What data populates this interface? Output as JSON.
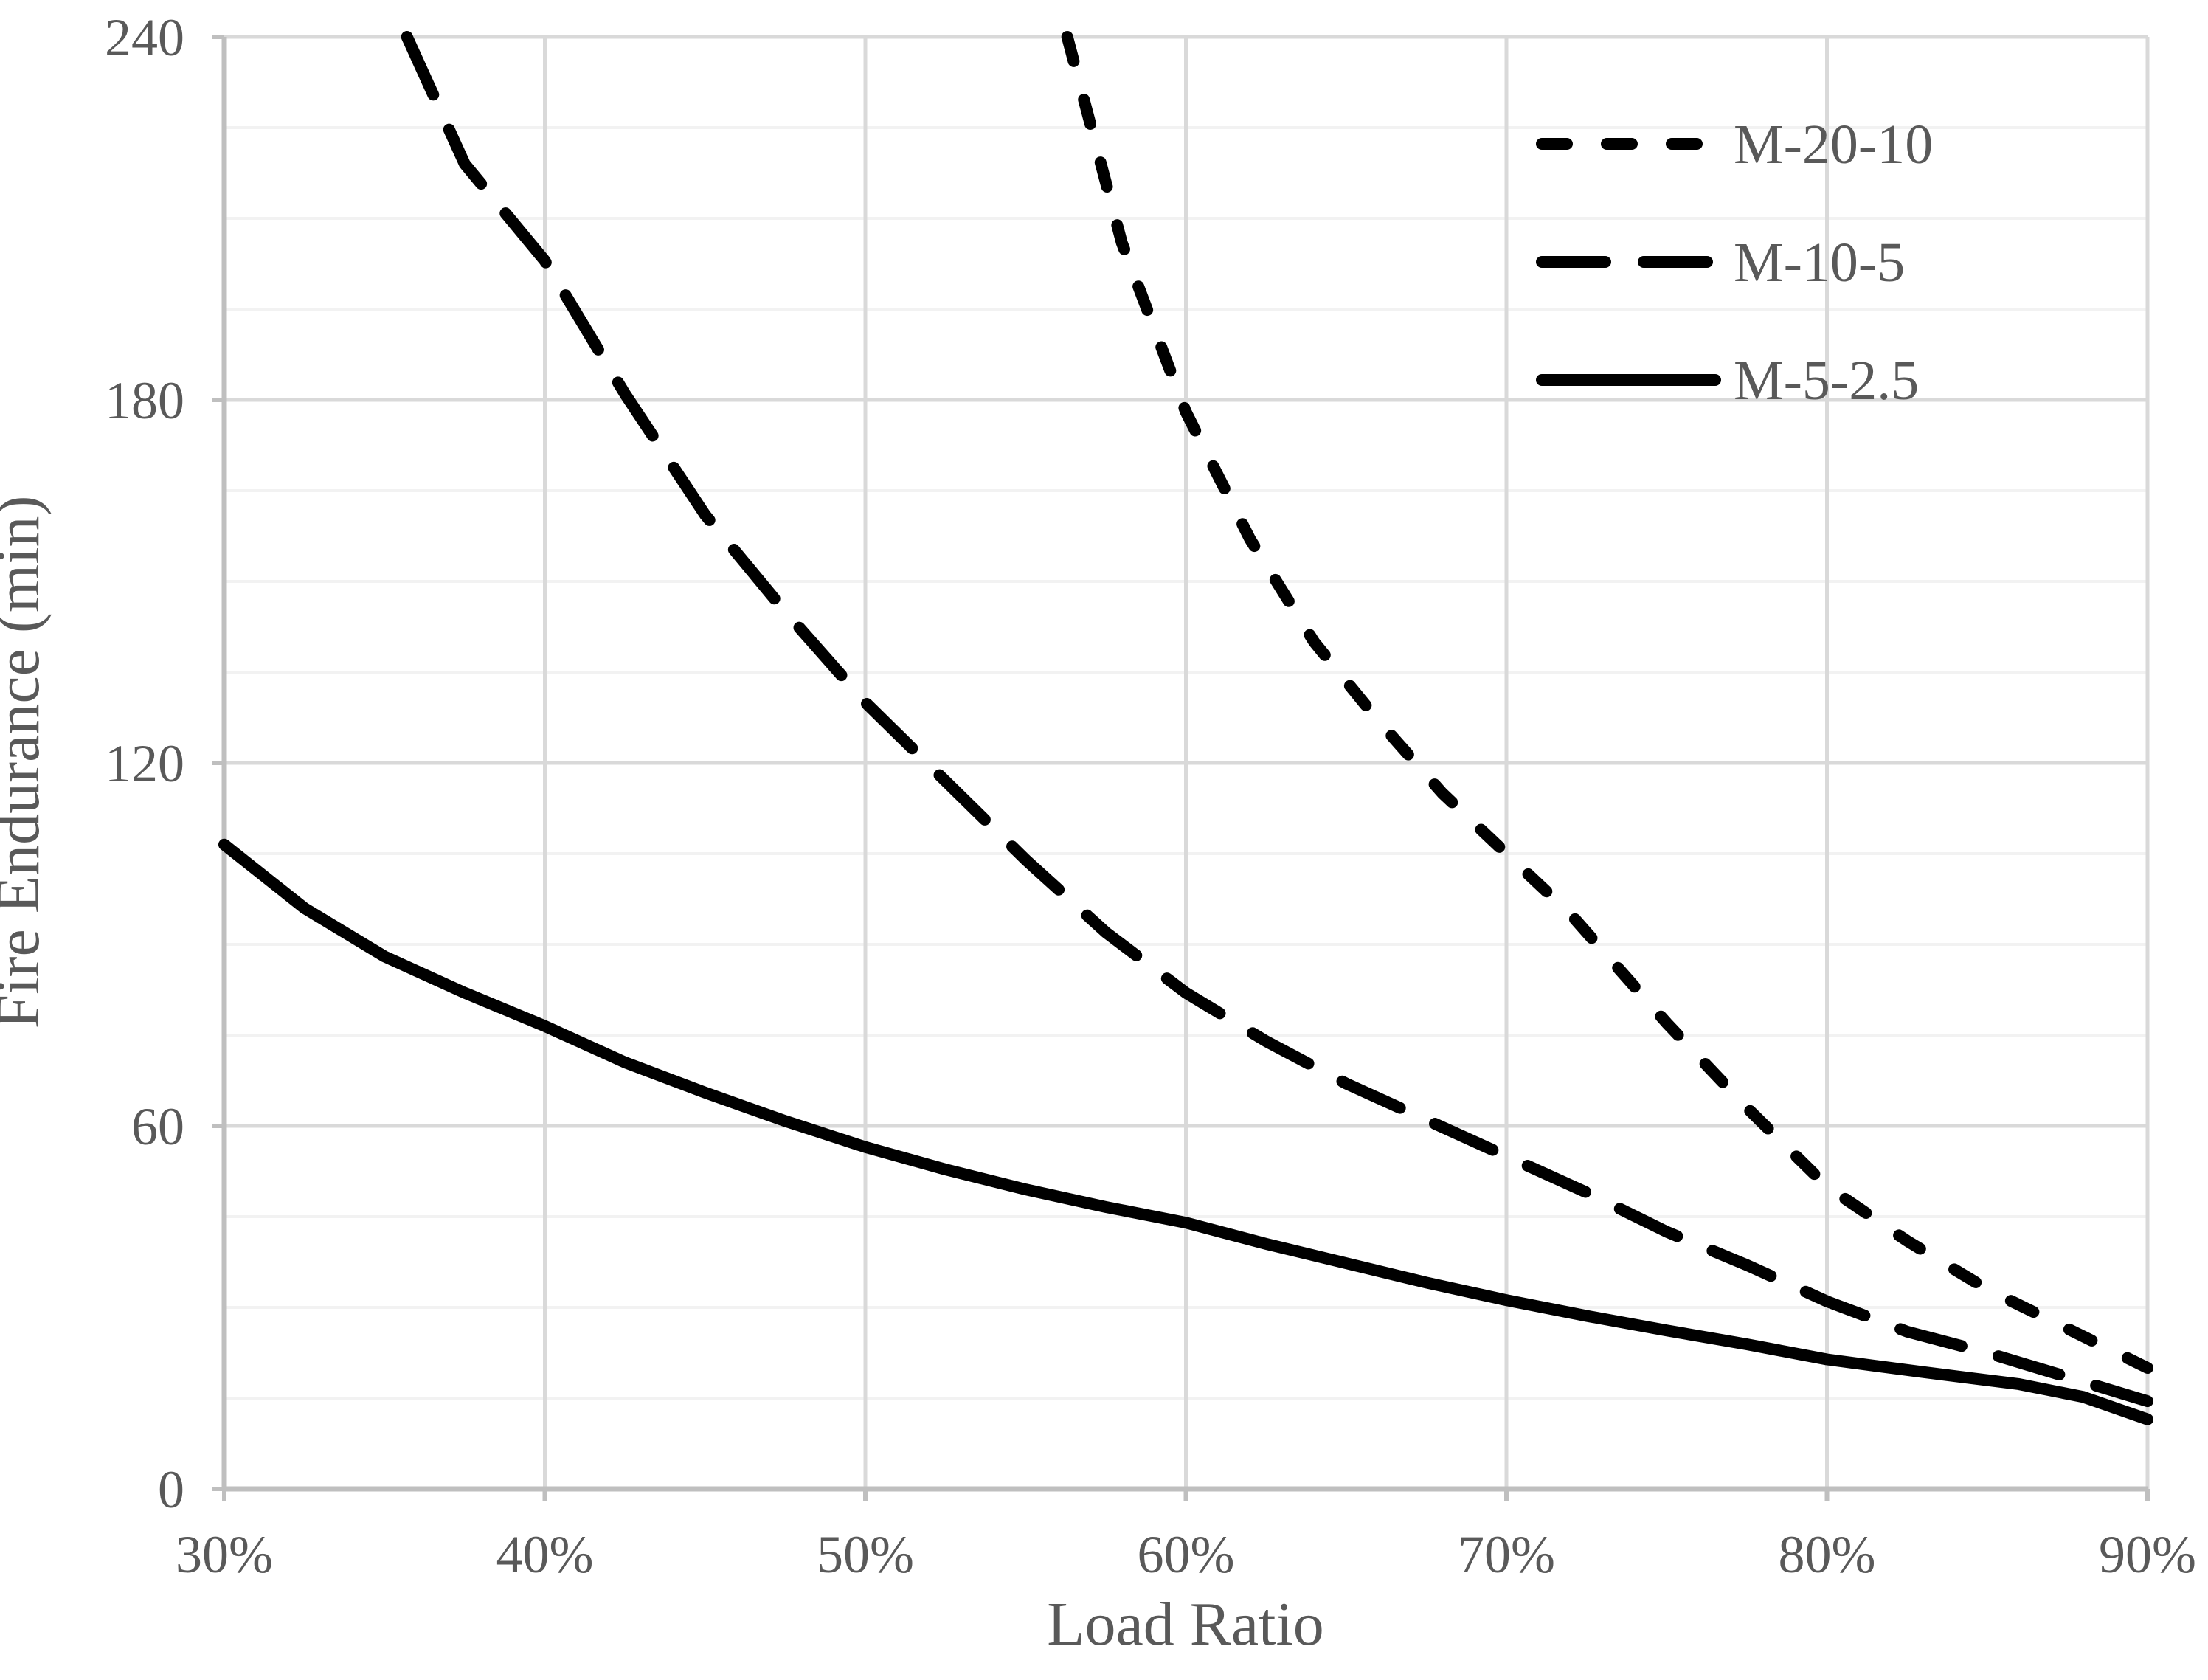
{
  "chart_data": {
    "type": "line",
    "title": "",
    "x_axis": {
      "title": "Load Ratio",
      "range": [
        30,
        90
      ],
      "tick_values": [
        30,
        40,
        50,
        60,
        70,
        80,
        90
      ],
      "tick_labels": [
        "30%",
        "40%",
        "50%",
        "60%",
        "70%",
        "80%",
        "90%"
      ],
      "gridlines": "major-vertical"
    },
    "y_axis": {
      "title": "Fire Endurance (min)",
      "range": [
        0,
        240
      ],
      "major_unit": 60,
      "minor_unit": 15,
      "tick_values": [
        0,
        60,
        120,
        180,
        240
      ],
      "tick_labels": [
        "0",
        "60",
        "120",
        "180",
        "240"
      ],
      "gridlines": "major-and-minor-horizontal"
    },
    "legend": {
      "position": "top-right",
      "entries": [
        {
          "label": "M-20-10",
          "style": "short-dash"
        },
        {
          "label": "M-10-5",
          "style": "long-dash"
        },
        {
          "label": "M-5-2.5",
          "style": "solid"
        }
      ]
    },
    "series": [
      {
        "name": "M-20-10",
        "line_style": "short-dash",
        "color": "#000000",
        "points": [
          [
            56.3,
            240
          ],
          [
            58,
            206
          ],
          [
            60,
            178
          ],
          [
            62,
            157
          ],
          [
            64,
            140
          ],
          [
            66,
            127
          ],
          [
            68,
            115
          ],
          [
            70,
            105
          ],
          [
            72,
            95
          ],
          [
            75,
            77
          ],
          [
            77.5,
            63
          ],
          [
            80,
            50
          ],
          [
            82.5,
            41
          ],
          [
            85,
            33
          ],
          [
            87.5,
            26.5
          ],
          [
            90,
            20
          ]
        ]
      },
      {
        "name": "M-10-5",
        "line_style": "long-dash",
        "color": "#000000",
        "points": [
          [
            35.7,
            240
          ],
          [
            37.5,
            219
          ],
          [
            40,
            203
          ],
          [
            42.5,
            181
          ],
          [
            45,
            161
          ],
          [
            47.5,
            145
          ],
          [
            50,
            130
          ],
          [
            52.5,
            117
          ],
          [
            55,
            104
          ],
          [
            57.5,
            92
          ],
          [
            60,
            82
          ],
          [
            62.5,
            74
          ],
          [
            65,
            67
          ],
          [
            67.5,
            61
          ],
          [
            70,
            55
          ],
          [
            72.5,
            49
          ],
          [
            75,
            42.5
          ],
          [
            77.5,
            37
          ],
          [
            80,
            31
          ],
          [
            82.5,
            26
          ],
          [
            85,
            22.5
          ],
          [
            87.5,
            18.5
          ],
          [
            90,
            14.5
          ]
        ]
      },
      {
        "name": "M-5-2.5",
        "line_style": "solid",
        "color": "#000000",
        "points": [
          [
            30,
            106.5
          ],
          [
            32.5,
            96
          ],
          [
            35,
            88
          ],
          [
            37.5,
            82
          ],
          [
            40,
            76.5
          ],
          [
            42.5,
            70.5
          ],
          [
            45,
            65.5
          ],
          [
            47.5,
            60.8
          ],
          [
            50,
            56.5
          ],
          [
            52.5,
            52.8
          ],
          [
            55,
            49.5
          ],
          [
            57.5,
            46.6
          ],
          [
            60,
            44
          ],
          [
            62.5,
            40.5
          ],
          [
            65,
            37.3
          ],
          [
            67.5,
            34.1
          ],
          [
            70,
            31.2
          ],
          [
            72.5,
            28.6
          ],
          [
            75,
            26.2
          ],
          [
            77.5,
            23.9
          ],
          [
            80,
            21.4
          ],
          [
            83,
            19.3
          ],
          [
            86,
            17.3
          ],
          [
            88,
            15.2
          ],
          [
            90,
            11.5
          ]
        ]
      }
    ],
    "colors": {
      "background": "#ffffff",
      "curve": "#000000",
      "text": "#595959",
      "axis_line": "#bfbfbf",
      "major_gridline": "#d9d9d9",
      "minor_gridline": "#f2f2f2"
    }
  }
}
